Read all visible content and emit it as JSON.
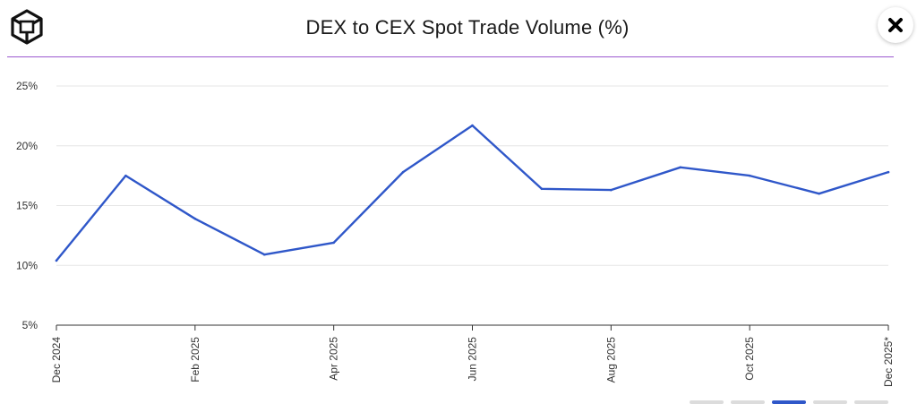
{
  "header": {
    "title": "DEX to CEX Spot Trade Volume (%)",
    "logo_icon": "cube-logo-icon",
    "close_icon": "close-icon",
    "rule_color": "#9b59d0"
  },
  "chart_data": {
    "type": "line",
    "title": "DEX to CEX Spot Trade Volume (%)",
    "xlabel": "",
    "ylabel": "",
    "x": [
      "Dec 2024",
      "Jan 2025",
      "Feb 2025",
      "Mar 2025",
      "Apr 2025",
      "May 2025",
      "Jun 2025",
      "Jul 2025",
      "Aug 2025",
      "Sep 2025",
      "Oct 2025",
      "Nov 2025",
      "Dec 2025*"
    ],
    "x_tick_labels": [
      "Dec 2024",
      "Feb 2025",
      "Apr 2025",
      "Jun 2025",
      "Aug 2025",
      "Oct 2025",
      "Dec 2025*"
    ],
    "series": [
      {
        "values": [
          10.4,
          17.5,
          13.9,
          10.9,
          11.9,
          17.8,
          21.7,
          16.4,
          16.3,
          18.2,
          17.5,
          16.0,
          17.8
        ],
        "color": "#2f57c9"
      }
    ],
    "ylim": [
      5,
      25
    ],
    "y_ticks": [
      5,
      10,
      15,
      20,
      25
    ],
    "y_tick_labels": [
      "5%",
      "10%",
      "15%",
      "20%",
      "25%"
    ],
    "grid": true,
    "legend": "none"
  },
  "pager": {
    "count": 5,
    "active": 2
  }
}
